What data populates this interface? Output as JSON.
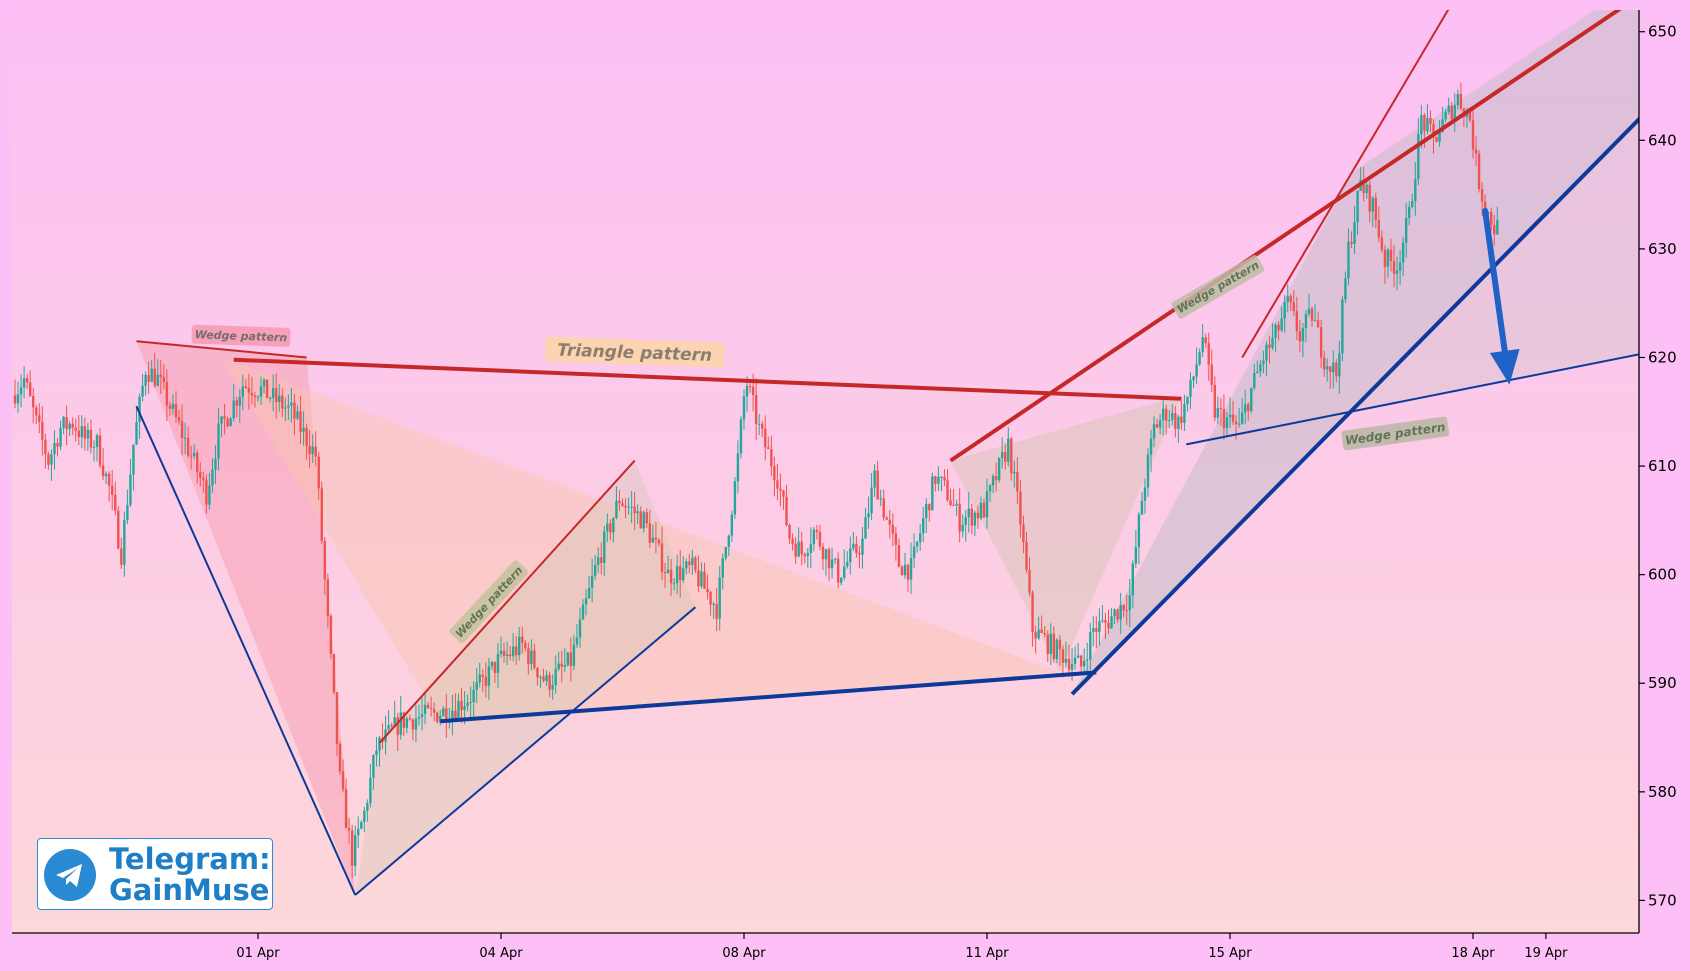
{
  "chart_data": {
    "type": "candlestick",
    "title": "",
    "xlabel": "",
    "ylabel": "",
    "ylim": [
      567,
      652
    ],
    "y_axis_side": "right",
    "y_ticks": [
      570,
      580,
      590,
      600,
      610,
      620,
      630,
      640,
      650
    ],
    "x_ticks": [
      {
        "label": "01 Apr",
        "t": 10.0
      },
      {
        "label": "04 Apr",
        "t": 20.0
      },
      {
        "label": "08 Apr",
        "t": 30.0
      },
      {
        "label": "11 Apr",
        "t": 40.0
      },
      {
        "label": "15 Apr",
        "t": 50.0
      },
      {
        "label": "18 Apr",
        "t": 60.0
      },
      {
        "label": "19 Apr",
        "t": 63.0
      }
    ],
    "x_range": [
      0,
      67.3
    ],
    "grid": false,
    "colors": {
      "background": "#fcc0f6",
      "plot_bg_top": "#fcc0f5",
      "plot_bg_bottom": "#fdd7d9",
      "up": "#26a69a",
      "down": "#ef5350",
      "red_line": "#c62828",
      "blue_line": "#0d3a9a",
      "arrow": "#1e62c8"
    },
    "price_path": [
      [
        0.0,
        616.5
      ],
      [
        0.5,
        618.0
      ],
      [
        1.0,
        614.0
      ],
      [
        1.5,
        610.5
      ],
      [
        2.0,
        613.5
      ],
      [
        2.5,
        614.0
      ],
      [
        3.0,
        612.5
      ],
      [
        3.5,
        612.0
      ],
      [
        4.0,
        608.0
      ],
      [
        4.5,
        602.0
      ],
      [
        5.0,
        612.0
      ],
      [
        5.5,
        619.0
      ],
      [
        6.0,
        618.0
      ],
      [
        7.0,
        613.0
      ],
      [
        8.0,
        607.5
      ],
      [
        8.5,
        613.0
      ],
      [
        9.5,
        617.5
      ],
      [
        10.3,
        617.0
      ],
      [
        11.5,
        615.0
      ],
      [
        12.5,
        611.0
      ],
      [
        13.0,
        595.5
      ],
      [
        13.5,
        581.0
      ],
      [
        14.0,
        574.0
      ],
      [
        14.5,
        578.0
      ],
      [
        15.0,
        584.0
      ],
      [
        16.0,
        586.5
      ],
      [
        17.0,
        587.0
      ],
      [
        18.0,
        587.5
      ],
      [
        19.0,
        589.0
      ],
      [
        20.0,
        592.0
      ],
      [
        21.0,
        593.5
      ],
      [
        22.0,
        590.0
      ],
      [
        23.0,
        592.0
      ],
      [
        24.0,
        600.5
      ],
      [
        25.0,
        607.0
      ],
      [
        26.0,
        605.0
      ],
      [
        27.0,
        600.0
      ],
      [
        28.0,
        600.5
      ],
      [
        29.0,
        597.0
      ],
      [
        29.8,
        609.0
      ],
      [
        30.2,
        618.0
      ],
      [
        30.8,
        613.0
      ],
      [
        31.5,
        609.0
      ],
      [
        32.0,
        603.5
      ],
      [
        32.5,
        602.0
      ],
      [
        33.0,
        604.0
      ],
      [
        34.0,
        600.0
      ],
      [
        34.5,
        601.5
      ],
      [
        35.0,
        603.0
      ],
      [
        35.5,
        609.0
      ],
      [
        36.0,
        605.0
      ],
      [
        36.5,
        601.0
      ],
      [
        37.0,
        600.5
      ],
      [
        37.5,
        605.0
      ],
      [
        38.0,
        609.0
      ],
      [
        38.5,
        607.5
      ],
      [
        39.0,
        605.0
      ],
      [
        40.0,
        606.0
      ],
      [
        41.0,
        612.0
      ],
      [
        41.5,
        605.0
      ],
      [
        42.0,
        595.0
      ],
      [
        43.0,
        593.0
      ],
      [
        44.0,
        591.5
      ],
      [
        44.5,
        595.0
      ],
      [
        45.0,
        595.5
      ],
      [
        46.0,
        598.0
      ],
      [
        46.5,
        607.0
      ],
      [
        47.0,
        613.5
      ],
      [
        47.5,
        615.0
      ],
      [
        48.0,
        614.0
      ],
      [
        48.5,
        617.0
      ],
      [
        49.0,
        622.0
      ],
      [
        49.5,
        615.0
      ],
      [
        50.5,
        613.5
      ],
      [
        51.0,
        617.0
      ],
      [
        51.5,
        620.0
      ],
      [
        52.0,
        622.0
      ],
      [
        52.5,
        625.0
      ],
      [
        53.0,
        622.0
      ],
      [
        53.5,
        624.0
      ],
      [
        54.0,
        620.0
      ],
      [
        54.5,
        618.5
      ],
      [
        55.0,
        630.0
      ],
      [
        55.5,
        636.0
      ],
      [
        56.0,
        634.0
      ],
      [
        56.5,
        629.0
      ],
      [
        57.0,
        628.5
      ],
      [
        57.5,
        633.0
      ],
      [
        58.0,
        642.0
      ],
      [
        58.5,
        640.0
      ],
      [
        59.0,
        642.0
      ],
      [
        59.5,
        644.0
      ],
      [
        60.0,
        642.0
      ],
      [
        60.3,
        637.0
      ],
      [
        60.6,
        634.0
      ],
      [
        61.0,
        632.0
      ]
    ],
    "overlays": [
      {
        "shape": "fill",
        "fill": "#f6a2b4",
        "opacity": 0.55,
        "points": [
          [
            5.0,
            621.5
          ],
          [
            14.0,
            570.5
          ],
          [
            12.0,
            620.0
          ]
        ]
      },
      {
        "shape": "fill",
        "fill": "#f8c6ad",
        "opacity": 0.45,
        "points": [
          [
            8.5,
            620.0
          ],
          [
            43.0,
            591.0
          ],
          [
            17.5,
            586.5
          ]
        ]
      },
      {
        "shape": "fill",
        "fill": "#cfc7b0",
        "opacity": 0.35,
        "points": [
          [
            15.0,
            584.5
          ],
          [
            25.5,
            610.5
          ],
          [
            28.0,
            597.0
          ],
          [
            14.0,
            570.5
          ]
        ]
      },
      {
        "shape": "fill",
        "fill": "#d2c4b0",
        "opacity": 0.45,
        "points": [
          [
            38.5,
            610.5
          ],
          [
            48.0,
            616.5
          ],
          [
            43.0,
            591.0
          ]
        ]
      },
      {
        "shape": "fill",
        "fill": "#c4bec8",
        "opacity": 0.55,
        "points": [
          [
            43.5,
            589.0
          ],
          [
            55.0,
            637.0
          ],
          [
            65.0,
            652.0
          ],
          [
            67.3,
            652.0
          ],
          [
            67.3,
            643.0
          ]
        ]
      },
      {
        "shape": "fill",
        "fill": "#c8c2c4",
        "opacity": 0.35,
        "points": [
          [
            48.2,
            612.0
          ],
          [
            67.3,
            620.5
          ],
          [
            67.3,
            643.0
          ],
          [
            55.0,
            615.0
          ]
        ]
      },
      {
        "shape": "line",
        "color": "#c62828",
        "width": 4,
        "points": [
          [
            9.0,
            619.8
          ],
          [
            48.0,
            616.2
          ]
        ]
      },
      {
        "shape": "line",
        "color": "#c62828",
        "width": 2,
        "points": [
          [
            5.0,
            621.5
          ],
          [
            12.0,
            620.0
          ]
        ]
      },
      {
        "shape": "line",
        "color": "#0d3a9a",
        "width": 2,
        "points": [
          [
            5.0,
            615.5
          ],
          [
            14.0,
            570.5
          ]
        ]
      },
      {
        "shape": "line",
        "color": "#0d3a9a",
        "width": 2,
        "points": [
          [
            14.0,
            570.5
          ],
          [
            28.0,
            597.0
          ]
        ]
      },
      {
        "shape": "line",
        "color": "#c62828",
        "width": 2,
        "points": [
          [
            15.0,
            584.5
          ],
          [
            25.5,
            610.5
          ]
        ]
      },
      {
        "shape": "line",
        "color": "#0d3a9a",
        "width": 4,
        "points": [
          [
            17.5,
            586.5
          ],
          [
            44.5,
            591.0
          ]
        ]
      },
      {
        "shape": "line",
        "color": "#c62828",
        "width": 4,
        "points": [
          [
            38.5,
            610.5
          ],
          [
            67.3,
            654.0
          ]
        ]
      },
      {
        "shape": "line",
        "color": "#0d3a9a",
        "width": 4,
        "points": [
          [
            43.5,
            589.0
          ],
          [
            67.3,
            643.0
          ]
        ]
      },
      {
        "shape": "line",
        "color": "#c62828",
        "width": 2,
        "points": [
          [
            50.5,
            620.0
          ],
          [
            59.5,
            654.0
          ]
        ]
      },
      {
        "shape": "line",
        "color": "#0d3a9a",
        "width": 2,
        "points": [
          [
            48.2,
            612.0
          ],
          [
            67.3,
            620.5
          ]
        ]
      }
    ],
    "arrow": {
      "from": [
        60.5,
        633.5
      ],
      "to": [
        61.5,
        617.5
      ],
      "color": "#1e62c8"
    },
    "annotations": [
      {
        "text": "Wedge pattern",
        "at": [
          9.3,
          622.0
        ],
        "angle": 2,
        "size": 11,
        "color": "#7a6a6a",
        "bg": "#f49ab0"
      },
      {
        "text": "Triangle pattern",
        "at": [
          25.5,
          620.5
        ],
        "angle": 2,
        "size": 17,
        "color": "#8a7e6e",
        "bg": "#fcd6a8"
      },
      {
        "text": "Wedge pattern",
        "at": [
          19.5,
          597.5
        ],
        "angle": -47,
        "size": 11,
        "color": "#5e7654",
        "bg": "#c4c29e"
      },
      {
        "text": "Wedge pattern",
        "at": [
          49.5,
          626.5
        ],
        "angle": -30,
        "size": 11,
        "color": "#5e7654",
        "bg": "#bdbba4"
      },
      {
        "text": "Wedge pattern",
        "at": [
          56.8,
          613.0
        ],
        "angle": -8,
        "size": 12,
        "color": "#5e7654",
        "bg": "#b9b6a6"
      }
    ]
  },
  "watermark": {
    "icon": "telegram-icon",
    "line1": "Telegram:",
    "line2": "GainMuse",
    "color": "#1f7fc6"
  }
}
